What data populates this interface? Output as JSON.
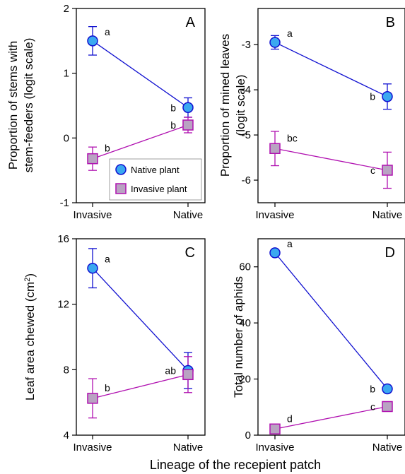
{
  "figure": {
    "xlabel": "Lineage of the recepient patch"
  },
  "legend": {
    "items": [
      {
        "label": "Native plant",
        "color": "#3aa8f0",
        "marker": "circle"
      },
      {
        "label": "Invasive plant",
        "color": "#b9a3c2",
        "marker": "square"
      }
    ]
  },
  "colors": {
    "native_line": "#1010d0",
    "invasive_line": "#b010b0",
    "native_fill": "#3aa8f0",
    "invasive_fill": "#b9a3c2"
  },
  "chart_data": [
    {
      "panel": "A",
      "type": "line",
      "categories": [
        "Invasive",
        "Native"
      ],
      "ylabel": "Proportion of stems with stem-feeders (logit scale)",
      "ylim": [
        -1,
        2
      ],
      "yticks": [
        -1,
        0,
        1,
        2
      ],
      "series": [
        {
          "name": "Native plant",
          "values": [
            1.5,
            0.47
          ],
          "err": [
            0.22,
            0.15
          ],
          "letters": [
            "a",
            "b"
          ]
        },
        {
          "name": "Invasive plant",
          "values": [
            -0.32,
            0.2
          ],
          "err": [
            0.18,
            0.12
          ],
          "letters": [
            "b",
            "b"
          ]
        }
      ]
    },
    {
      "panel": "B",
      "type": "line",
      "categories": [
        "Invasive",
        "Native"
      ],
      "ylabel": "Proportion of mined leaves (logit scale)",
      "ylim": [
        -6.5,
        -2.2
      ],
      "yticks": [
        -6,
        -5,
        -4,
        -3
      ],
      "series": [
        {
          "name": "Native plant",
          "values": [
            -2.95,
            -4.15
          ],
          "err": [
            0.15,
            0.28
          ],
          "letters": [
            "a",
            "b"
          ]
        },
        {
          "name": "Invasive plant",
          "values": [
            -5.3,
            -5.78
          ],
          "err": [
            0.38,
            0.4
          ],
          "letters": [
            "bc",
            "c"
          ]
        }
      ]
    },
    {
      "panel": "C",
      "type": "line",
      "categories": [
        "Invasive",
        "Native"
      ],
      "ylabel": "Leaf area chewed (cm²)",
      "ylim": [
        4,
        16
      ],
      "yticks": [
        4,
        8,
        12,
        16
      ],
      "series": [
        {
          "name": "Native plant",
          "values": [
            14.2,
            7.95
          ],
          "err": [
            1.2,
            1.1
          ],
          "letters": [
            "a",
            "ab"
          ]
        },
        {
          "name": "Invasive plant",
          "values": [
            6.25,
            7.7
          ],
          "err": [
            1.2,
            1.1
          ],
          "letters": [
            "b",
            ""
          ]
        }
      ]
    },
    {
      "panel": "D",
      "type": "line",
      "categories": [
        "Invasive",
        "Native"
      ],
      "ylabel": "Total number of aphids",
      "ylim": [
        0,
        70
      ],
      "yticks": [
        0,
        20,
        40,
        60
      ],
      "series": [
        {
          "name": "Native plant",
          "values": [
            65,
            16.5
          ],
          "err": [
            0,
            0
          ],
          "letters": [
            "a",
            "b"
          ]
        },
        {
          "name": "Invasive plant",
          "values": [
            2.2,
            10.2
          ],
          "err": [
            0,
            0
          ],
          "letters": [
            "d",
            "c"
          ]
        }
      ]
    }
  ]
}
